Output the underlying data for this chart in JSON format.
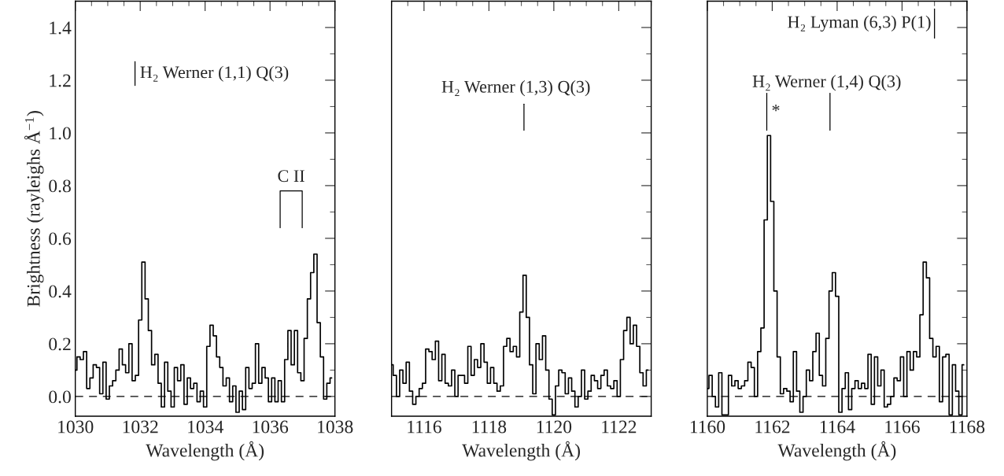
{
  "chart_data": [
    {
      "type": "step",
      "xlabel": "Wavelength (Å)",
      "ylabel": "Brightness (rayleighs Å$^{−1}$)",
      "color": "#000000",
      "xlim": [
        1030,
        1038
      ],
      "xticks": [
        1030,
        1032,
        1034,
        1036,
        1038
      ],
      "ylim": [
        -0.075,
        1.5
      ],
      "yticks": [
        {
          "value": 0,
          "label": "0.0"
        },
        {
          "value": 0.2,
          "label": "0.2"
        },
        {
          "value": 0.4,
          "label": "0.4"
        },
        {
          "value": 0.6,
          "label": "0.6"
        },
        {
          "value": 0.8,
          "label": "0.8"
        },
        {
          "value": 1.0,
          "label": "1.0"
        },
        {
          "value": 1.2,
          "label": "1.2"
        },
        {
          "value": 1.4,
          "label": "1.4"
        }
      ],
      "x": [
        1030.0,
        1030.1,
        1030.2,
        1030.3,
        1030.4,
        1030.5,
        1030.6,
        1030.7,
        1030.8,
        1030.9,
        1031.0,
        1031.1,
        1031.2,
        1031.3,
        1031.4,
        1031.5,
        1031.6,
        1031.7,
        1031.8,
        1031.9,
        1032.0,
        1032.1,
        1032.2,
        1032.3,
        1032.4,
        1032.5,
        1032.6,
        1032.7,
        1032.8,
        1032.9,
        1033.0,
        1033.1,
        1033.2,
        1033.3,
        1033.4,
        1033.5,
        1033.6,
        1033.7,
        1033.8,
        1033.9,
        1034.0,
        1034.1,
        1034.2,
        1034.3,
        1034.4,
        1034.5,
        1034.6,
        1034.7,
        1034.8,
        1034.9,
        1035.0,
        1035.1,
        1035.2,
        1035.3,
        1035.4,
        1035.5,
        1035.6,
        1035.7,
        1035.8,
        1035.9,
        1036.0,
        1036.1,
        1036.2,
        1036.3,
        1036.4,
        1036.5,
        1036.6,
        1036.7,
        1036.8,
        1036.9,
        1037.0,
        1037.1,
        1037.2,
        1037.3,
        1037.4,
        1037.5,
        1037.6,
        1037.7,
        1037.8,
        1037.9
      ],
      "values": [
        0.1,
        0.15,
        0.14,
        0.17,
        0.03,
        0.07,
        0.12,
        0.11,
        0.01,
        0.13,
        -0.01,
        0.04,
        0.06,
        0.1,
        0.18,
        0.12,
        0.09,
        0.2,
        0.06,
        0.08,
        0.29,
        0.51,
        0.37,
        0.25,
        0.12,
        0.16,
        0.05,
        -0.04,
        0.13,
        0.02,
        -0.04,
        0.11,
        0.06,
        0.12,
        -0.03,
        0.07,
        0.03,
        0.05,
        -0.02,
        0.02,
        -0.04,
        0.19,
        0.27,
        0.23,
        0.15,
        0.11,
        0.04,
        0.07,
        -0.02,
        0.04,
        -0.06,
        0.02,
        -0.05,
        0.11,
        0.03,
        0.05,
        0.2,
        0.05,
        0.11,
        0.07,
        -0.02,
        0.07,
        -0.02,
        0.06,
        -0.02,
        0.14,
        0.25,
        0.12,
        0.25,
        0.09,
        0.06,
        0.22,
        0.37,
        0.47,
        0.54,
        0.28,
        0.15,
        -0.01,
        0.05,
        0.07
      ],
      "ref_lines": [
        {
          "axis": "y",
          "value": 0,
          "line_style": "dashed"
        }
      ],
      "annotations": [
        "H₂ Werner (1,1) Q(3)",
        "C II"
      ]
    },
    {
      "type": "step",
      "xlabel": "Wavelength (Å)",
      "color": "#000000",
      "tick_labels": "x",
      "xlim": [
        1115,
        1123
      ],
      "xticks": [
        1116,
        1118,
        1120,
        1122
      ],
      "ylim": [
        -0.075,
        1.5
      ],
      "yticks": [
        {
          "value": 0,
          "label": null
        },
        {
          "value": 0.2,
          "label": null
        },
        {
          "value": 0.4,
          "label": null
        },
        {
          "value": 0.6,
          "label": null
        },
        {
          "value": 0.8,
          "label": null
        },
        {
          "value": 1.0,
          "label": null
        },
        {
          "value": 1.2,
          "label": null
        },
        {
          "value": 1.4,
          "label": null
        }
      ],
      "x": [
        1115.0,
        1115.1,
        1115.2,
        1115.3,
        1115.4,
        1115.5,
        1115.6,
        1115.7,
        1115.8,
        1115.9,
        1116.0,
        1116.1,
        1116.2,
        1116.3,
        1116.4,
        1116.5,
        1116.6,
        1116.7,
        1116.8,
        1116.9,
        1117.0,
        1117.1,
        1117.2,
        1117.3,
        1117.4,
        1117.5,
        1117.6,
        1117.7,
        1117.8,
        1117.9,
        1118.0,
        1118.1,
        1118.2,
        1118.3,
        1118.4,
        1118.5,
        1118.6,
        1118.7,
        1118.8,
        1118.9,
        1119.0,
        1119.1,
        1119.2,
        1119.3,
        1119.4,
        1119.5,
        1119.6,
        1119.7,
        1119.8,
        1119.9,
        1120.0,
        1120.1,
        1120.2,
        1120.3,
        1120.4,
        1120.5,
        1120.6,
        1120.7,
        1120.8,
        1120.9,
        1121.0,
        1121.1,
        1121.2,
        1121.3,
        1121.4,
        1121.5,
        1121.6,
        1121.7,
        1121.8,
        1121.9,
        1122.0,
        1122.1,
        1122.2,
        1122.3,
        1122.4,
        1122.5,
        1122.6,
        1122.7,
        1122.8,
        1122.9
      ],
      "values": [
        0.12,
        0.08,
        0.0,
        0.1,
        0.05,
        0.13,
        0.02,
        -0.03,
        0.0,
        0.03,
        0.05,
        0.18,
        0.17,
        0.14,
        0.21,
        0.06,
        0.16,
        0.05,
        0.04,
        0.1,
        0.0,
        0.08,
        0.08,
        0.05,
        0.19,
        0.08,
        0.14,
        0.11,
        0.2,
        0.13,
        0.05,
        0.11,
        0.05,
        0.02,
        0.04,
        0.19,
        0.22,
        0.17,
        0.19,
        0.15,
        0.32,
        0.46,
        0.3,
        0.12,
        0.01,
        0.2,
        0.14,
        0.23,
        0.1,
        -0.01,
        -0.07,
        0.04,
        0.1,
        0.09,
        0.01,
        0.07,
        0.02,
        -0.04,
        0.0,
        0.1,
        -0.01,
        0.02,
        0.08,
        0.06,
        0.03,
        0.08,
        0.1,
        0.04,
        0.03,
        0.06,
        0.0,
        0.14,
        0.25,
        0.3,
        0.2,
        0.27,
        0.19,
        0.09,
        0.04,
        0.1
      ],
      "ref_lines": [
        {
          "axis": "y",
          "value": 0,
          "line_style": "dashed"
        }
      ],
      "annotations": [
        "H₂ Werner (1,3) Q(3)"
      ]
    },
    {
      "type": "step",
      "xlabel": "Wavelength (Å)",
      "color": "#000000",
      "tick_labels": "x",
      "xlim": [
        1160,
        1168
      ],
      "xticks": [
        1160,
        1162,
        1164,
        1166,
        1168
      ],
      "ylim": [
        -0.075,
        1.5
      ],
      "yticks": [
        {
          "value": 0,
          "label": null
        },
        {
          "value": 0.2,
          "label": null
        },
        {
          "value": 0.4,
          "label": null
        },
        {
          "value": 0.6,
          "label": null
        },
        {
          "value": 0.8,
          "label": null
        },
        {
          "value": 1.0,
          "label": null
        },
        {
          "value": 1.2,
          "label": null
        },
        {
          "value": 1.4,
          "label": null
        }
      ],
      "x": [
        1160.0,
        1160.1,
        1160.2,
        1160.3,
        1160.4,
        1160.5,
        1160.6,
        1160.7,
        1160.8,
        1160.9,
        1161.0,
        1161.1,
        1161.2,
        1161.3,
        1161.4,
        1161.5,
        1161.6,
        1161.7,
        1161.8,
        1161.9,
        1162.0,
        1162.1,
        1162.2,
        1162.3,
        1162.4,
        1162.5,
        1162.6,
        1162.7,
        1162.8,
        1162.9,
        1163.0,
        1163.1,
        1163.2,
        1163.3,
        1163.4,
        1163.5,
        1163.6,
        1163.7,
        1163.8,
        1163.9,
        1164.0,
        1164.1,
        1164.2,
        1164.3,
        1164.4,
        1164.5,
        1164.6,
        1164.7,
        1164.8,
        1164.9,
        1165.0,
        1165.1,
        1165.2,
        1165.3,
        1165.4,
        1165.5,
        1165.6,
        1165.7,
        1165.8,
        1165.9,
        1166.0,
        1166.1,
        1166.2,
        1166.3,
        1166.4,
        1166.5,
        1166.6,
        1166.7,
        1166.8,
        1166.9,
        1167.0,
        1167.1,
        1167.2,
        1167.3,
        1167.4,
        1167.5,
        1167.6,
        1167.7,
        1167.8,
        1167.9
      ],
      "values": [
        0.03,
        0.08,
        0.0,
        -0.04,
        0.09,
        -0.07,
        -0.07,
        0.08,
        0.04,
        0.06,
        0.03,
        0.04,
        0.06,
        0.13,
        0.11,
        0.0,
        0.17,
        0.26,
        0.67,
        0.99,
        0.74,
        0.4,
        0.15,
        0.01,
        0.03,
        0.02,
        -0.02,
        0.17,
        0.02,
        -0.06,
        0.0,
        0.1,
        0.06,
        0.17,
        0.24,
        0.08,
        0.04,
        0.22,
        0.4,
        0.47,
        0.38,
        -0.06,
        0.03,
        0.09,
        -0.05,
        0.03,
        0.06,
        0.03,
        0.05,
        0.03,
        0.16,
        -0.03,
        0.15,
        0.04,
        0.1,
        -0.04,
        -0.03,
        0.0,
        0.07,
        0.06,
        0.15,
        0.0,
        0.17,
        0.1,
        0.17,
        0.15,
        0.31,
        0.51,
        0.45,
        0.22,
        0.15,
        0.19,
        -0.02,
        0.15,
        0.16,
        -0.07,
        0.12,
        0.02,
        -0.07,
        0.12
      ],
      "ref_lines": [
        {
          "axis": "y",
          "value": 0,
          "line_style": "dashed"
        }
      ],
      "annotations": [
        "H₂ Lyman (6,3) P(1)",
        "H₂ Werner (1,4) Q(3)",
        "*"
      ]
    }
  ]
}
